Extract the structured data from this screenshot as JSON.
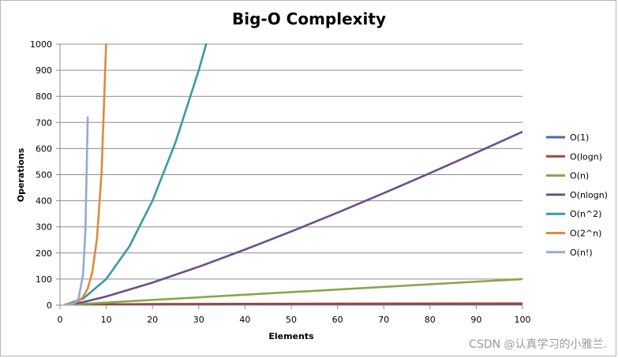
{
  "chart_data": {
    "type": "line",
    "title": "Big-O Complexity",
    "xlabel": "Elements",
    "ylabel": "Operations",
    "xlim": [
      0,
      100
    ],
    "ylim": [
      0,
      1000
    ],
    "xticks": [
      0,
      10,
      20,
      30,
      40,
      50,
      60,
      70,
      80,
      90,
      100
    ],
    "yticks": [
      0,
      100,
      200,
      300,
      400,
      500,
      600,
      700,
      800,
      900,
      1000
    ],
    "grid": "horizontal",
    "legend_position": "right",
    "series": [
      {
        "name": "O(1)",
        "color": "#4a6b9c",
        "x": [
          1,
          100
        ],
        "y": [
          1,
          1
        ]
      },
      {
        "name": "O(logn)",
        "color": "#a04444",
        "x": [
          1,
          10,
          20,
          40,
          60,
          80,
          100
        ],
        "y": [
          0,
          3.3,
          4.3,
          5.3,
          5.9,
          6.3,
          6.6
        ]
      },
      {
        "name": "O(n)",
        "color": "#85a84a",
        "x": [
          1,
          100
        ],
        "y": [
          1,
          100
        ]
      },
      {
        "name": "O(nlogn)",
        "color": "#6e4f8c",
        "x": [
          1,
          5,
          10,
          20,
          30,
          40,
          50,
          60,
          70,
          80,
          90,
          100
        ],
        "y": [
          0,
          11.6,
          33.2,
          86.4,
          147.2,
          212.9,
          282.2,
          354.4,
          429.1,
          505.8,
          584.3,
          664.4
        ]
      },
      {
        "name": "O(n^2)",
        "color": "#3a9aa8",
        "x": [
          1,
          5,
          10,
          15,
          20,
          25,
          30,
          31.6
        ],
        "y": [
          1,
          25,
          100,
          225,
          400,
          625,
          900,
          1000
        ]
      },
      {
        "name": "O(2^n)",
        "color": "#e08a3c",
        "x": [
          1,
          2,
          3,
          4,
          5,
          6,
          7,
          8,
          9,
          9.97
        ],
        "y": [
          2,
          4,
          8,
          16,
          32,
          64,
          128,
          256,
          512,
          1000
        ]
      },
      {
        "name": "O(n!)",
        "color": "#95abcf",
        "x": [
          1,
          2,
          3,
          4,
          5,
          5.5,
          6
        ],
        "y": [
          1,
          2,
          6,
          24,
          120,
          287,
          720
        ]
      }
    ]
  },
  "watermark": "CSDN @认真学习的小雅兰."
}
